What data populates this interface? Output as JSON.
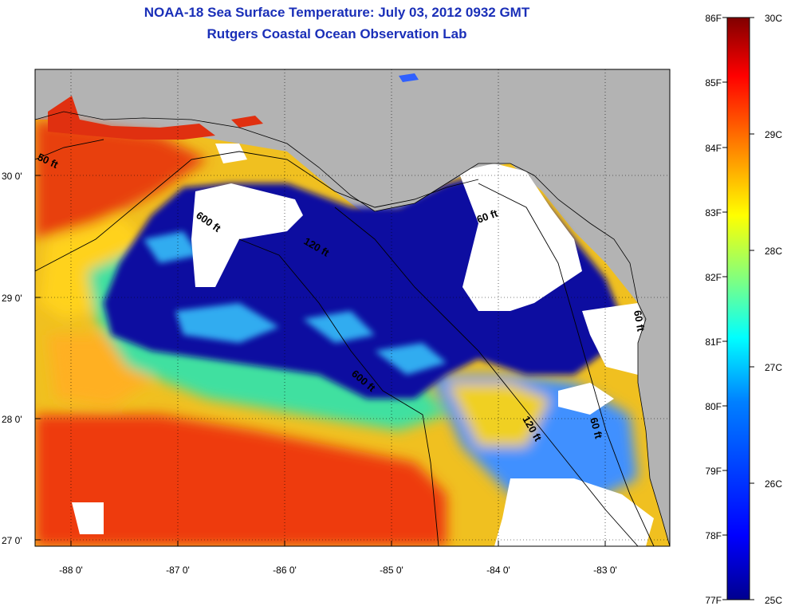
{
  "title": {
    "line1": "NOAA-18 Sea Surface Temperature:  July 03, 2012 0932 GMT",
    "line2": "Rutgers Coastal Ocean Observation Lab"
  },
  "map": {
    "x_ticks": [
      "-88 0'",
      "-87 0'",
      "-86 0'",
      "-85 0'",
      "-84 0'",
      "-83 0'"
    ],
    "y_ticks": [
      "30 0'",
      "29 0'",
      "28 0'",
      "27 0'"
    ],
    "contour_labels": [
      "50 ft",
      "600 ft",
      "120 ft",
      "60 ft",
      "600 ft",
      "120 ft",
      "60 ft",
      "60 ft"
    ],
    "colors": {
      "land": "#b3b3b3",
      "cloud": "#ffffff",
      "cold": "#00008f",
      "warm": "#e0200a"
    }
  },
  "colorbar": {
    "left_labels": [
      "86F",
      "85F",
      "84F",
      "83F",
      "82F",
      "81F",
      "80F",
      "79F",
      "78F",
      "77F"
    ],
    "right_labels": [
      "30C",
      "29C",
      "28C",
      "27C",
      "26C",
      "25C"
    ],
    "colors": [
      "#00008f",
      "#0000ff",
      "#0080ff",
      "#00ffff",
      "#80ff80",
      "#ffff00",
      "#ff8000",
      "#ff0000",
      "#800000"
    ]
  }
}
